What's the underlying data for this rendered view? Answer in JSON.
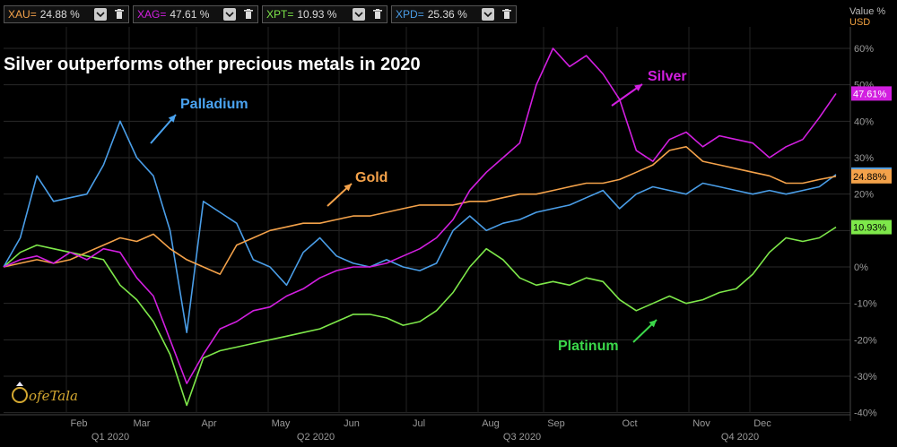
{
  "legend": [
    {
      "code": "XAU",
      "eq": "=",
      "value": "24.88 %",
      "color": "#f4a24a"
    },
    {
      "code": "XAG",
      "eq": "=",
      "value": "47.61 %",
      "color": "#d21fe0"
    },
    {
      "code": "XPT",
      "eq": "=",
      "value": "10.93 %",
      "color": "#7ee84a"
    },
    {
      "code": "XPD",
      "eq": "=",
      "value": "25.36 %",
      "color": "#4a9ee8"
    }
  ],
  "units": {
    "line1": "Value %",
    "line2": "USD"
  },
  "logo_text": "ofeTala",
  "annotations": {
    "palladium": "Palladium",
    "gold": "Gold",
    "silver": "Silver",
    "platinum": "Platinum"
  },
  "chart_data": {
    "type": "line",
    "title": "Silver outperforms other precious metals in 2020",
    "xlabel": "",
    "ylabel": "Value %",
    "ylim": [
      -40,
      65
    ],
    "yticks": [
      "60%",
      "50%",
      "40%",
      "30%",
      "20%",
      "10%",
      "0%",
      "-10%",
      "-20%",
      "-30%",
      "-40%"
    ],
    "month_labels": [
      "Feb",
      "Mar",
      "Apr",
      "May",
      "Jun",
      "Jul",
      "Aug",
      "Sep",
      "Oct",
      "Nov",
      "Dec"
    ],
    "quarter_labels": [
      "Q1 2020",
      "Q2 2020",
      "Q3 2020",
      "Q4 2020"
    ],
    "grid": true,
    "end_labels": [
      {
        "text": "47.61%",
        "series": "XAG"
      },
      {
        "text": "25.36%",
        "series": "XPD"
      },
      {
        "text": "24.88%",
        "series": "XAU"
      },
      {
        "text": "10.93%",
        "series": "XPT"
      }
    ],
    "series": [
      {
        "name": "XAU",
        "color": "#f4a24a",
        "x": [
          0,
          0.02,
          0.04,
          0.06,
          0.08,
          0.1,
          0.12,
          0.14,
          0.16,
          0.18,
          0.2,
          0.22,
          0.24,
          0.26,
          0.28,
          0.3,
          0.32,
          0.34,
          0.36,
          0.38,
          0.4,
          0.42,
          0.44,
          0.46,
          0.48,
          0.5,
          0.52,
          0.54,
          0.56,
          0.58,
          0.6,
          0.62,
          0.64,
          0.66,
          0.68,
          0.7,
          0.72,
          0.74,
          0.76,
          0.78,
          0.8,
          0.82,
          0.84,
          0.86,
          0.88,
          0.9,
          0.92,
          0.94,
          0.96,
          0.98,
          1
        ],
        "y": [
          0,
          1,
          2,
          1,
          2,
          4,
          6,
          8,
          7,
          9,
          5,
          2,
          0,
          -2,
          6,
          8,
          10,
          11,
          12,
          12,
          13,
          14,
          14,
          15,
          16,
          17,
          17,
          17,
          18,
          18,
          19,
          20,
          20,
          21,
          22,
          23,
          23,
          24,
          26,
          28,
          32,
          33,
          29,
          28,
          27,
          26,
          25,
          23,
          23,
          24,
          24.88
        ]
      },
      {
        "name": "XAG",
        "color": "#d21fe0",
        "x": [
          0,
          0.02,
          0.04,
          0.06,
          0.08,
          0.1,
          0.12,
          0.14,
          0.16,
          0.18,
          0.2,
          0.22,
          0.24,
          0.26,
          0.28,
          0.3,
          0.32,
          0.34,
          0.36,
          0.38,
          0.4,
          0.42,
          0.44,
          0.46,
          0.48,
          0.5,
          0.52,
          0.54,
          0.56,
          0.58,
          0.6,
          0.62,
          0.64,
          0.66,
          0.68,
          0.7,
          0.72,
          0.74,
          0.76,
          0.78,
          0.8,
          0.82,
          0.84,
          0.86,
          0.88,
          0.9,
          0.92,
          0.94,
          0.96,
          0.98,
          1
        ],
        "y": [
          0,
          2,
          3,
          1,
          4,
          2,
          5,
          4,
          -3,
          -8,
          -20,
          -32,
          -24,
          -17,
          -15,
          -12,
          -11,
          -8,
          -6,
          -3,
          -1,
          0,
          0,
          1,
          3,
          5,
          8,
          13,
          21,
          26,
          30,
          34,
          50,
          60,
          55,
          58,
          53,
          46,
          32,
          29,
          35,
          37,
          33,
          36,
          35,
          34,
          30,
          33,
          35,
          41,
          47.61
        ]
      },
      {
        "name": "XPT",
        "color": "#7ee84a",
        "x": [
          0,
          0.02,
          0.04,
          0.06,
          0.08,
          0.1,
          0.12,
          0.14,
          0.16,
          0.18,
          0.2,
          0.22,
          0.24,
          0.26,
          0.28,
          0.3,
          0.32,
          0.34,
          0.36,
          0.38,
          0.4,
          0.42,
          0.44,
          0.46,
          0.48,
          0.5,
          0.52,
          0.54,
          0.56,
          0.58,
          0.6,
          0.62,
          0.64,
          0.66,
          0.68,
          0.7,
          0.72,
          0.74,
          0.76,
          0.78,
          0.8,
          0.82,
          0.84,
          0.86,
          0.88,
          0.9,
          0.92,
          0.94,
          0.96,
          0.98,
          1
        ],
        "y": [
          0,
          4,
          6,
          5,
          4,
          3,
          2,
          -5,
          -9,
          -15,
          -24,
          -38,
          -25,
          -23,
          -22,
          -21,
          -20,
          -19,
          -18,
          -17,
          -15,
          -13,
          -13,
          -14,
          -16,
          -15,
          -12,
          -7,
          0,
          5,
          2,
          -3,
          -5,
          -4,
          -5,
          -3,
          -4,
          -9,
          -12,
          -10,
          -8,
          -10,
          -9,
          -7,
          -6,
          -2,
          4,
          8,
          7,
          8,
          10.93
        ]
      },
      {
        "name": "XPD",
        "color": "#4a9ee8",
        "x": [
          0,
          0.02,
          0.04,
          0.06,
          0.08,
          0.1,
          0.12,
          0.14,
          0.16,
          0.18,
          0.2,
          0.22,
          0.24,
          0.26,
          0.28,
          0.3,
          0.32,
          0.34,
          0.36,
          0.38,
          0.4,
          0.42,
          0.44,
          0.46,
          0.48,
          0.5,
          0.52,
          0.54,
          0.56,
          0.58,
          0.6,
          0.62,
          0.64,
          0.66,
          0.68,
          0.7,
          0.72,
          0.74,
          0.76,
          0.78,
          0.8,
          0.82,
          0.84,
          0.86,
          0.88,
          0.9,
          0.92,
          0.94,
          0.96,
          0.98,
          1
        ],
        "y": [
          0,
          8,
          25,
          18,
          19,
          20,
          28,
          40,
          30,
          25,
          10,
          -18,
          18,
          15,
          12,
          2,
          0,
          -5,
          4,
          8,
          3,
          1,
          0,
          2,
          0,
          -1,
          1,
          10,
          14,
          10,
          12,
          13,
          15,
          16,
          17,
          19,
          21,
          16,
          20,
          22,
          21,
          20,
          23,
          22,
          21,
          20,
          21,
          20,
          21,
          22,
          25.36
        ]
      }
    ]
  }
}
